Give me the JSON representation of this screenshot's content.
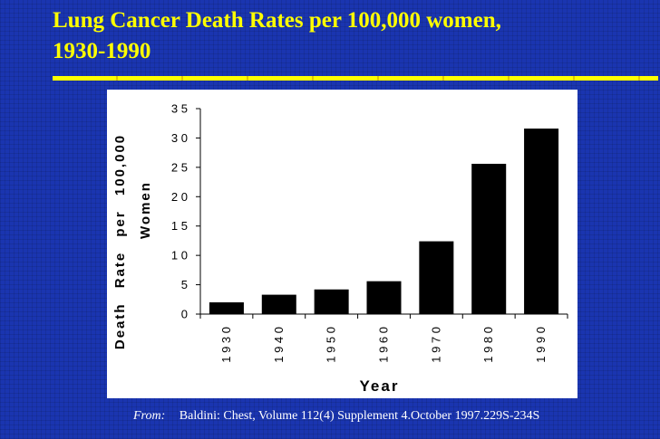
{
  "slide": {
    "title_line1": "Lung Cancer Death Rates per 100,000 women,",
    "title_line2": "1930-1990",
    "source_prefix": "From:",
    "source_text": "Baldini: Chest, Volume 112(4) Supplement 4.October 1997.229S-234S"
  },
  "colors": {
    "background": "#1a35b0",
    "title": "#ffff00",
    "bar": "#000000",
    "panel": "#ffffff"
  },
  "chart_data": {
    "type": "bar",
    "categories": [
      "1930",
      "1940",
      "1950",
      "1960",
      "1970",
      "1980",
      "1990"
    ],
    "values": [
      2,
      3.3,
      4.2,
      5.6,
      12.4,
      25.6,
      31.6
    ],
    "title": "",
    "xlabel": "Year",
    "ylabel_line1": "Death Rate per 100,000",
    "ylabel_line2": "Women",
    "ylim": [
      0,
      35
    ],
    "yticks": [
      0,
      5,
      10,
      15,
      20,
      25,
      30,
      35
    ],
    "ytick_labels": [
      "0",
      "5",
      "1 0",
      "1 5",
      "2 0",
      "2 5",
      "3 0",
      "3 5"
    ],
    "xtick_labels": [
      "1 9 3 0",
      "1 9 4 0",
      "1 9 5 0",
      "1 9 6 0",
      "1 9 7 0",
      "1 9 8 0",
      "1 9 9 0"
    ],
    "grid": false,
    "legend": "none"
  }
}
